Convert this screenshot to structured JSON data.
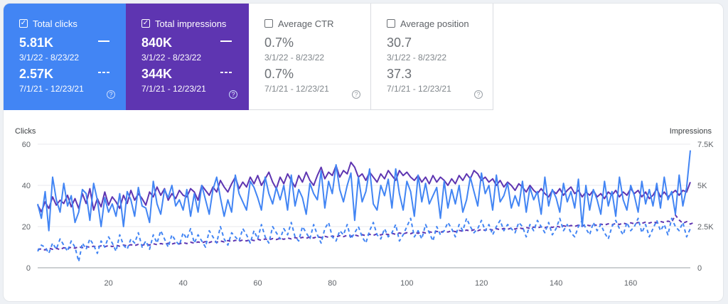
{
  "cards": [
    {
      "label": "Total clicks",
      "checked": true,
      "value1": "5.81K",
      "range1": "3/1/22 - 8/23/22",
      "value2": "2.57K",
      "range2": "7/1/21 - 12/23/21",
      "help": "?"
    },
    {
      "label": "Total impressions",
      "checked": true,
      "value1": "840K",
      "range1": "3/1/22 - 8/23/22",
      "value2": "344K",
      "range2": "7/1/21 - 12/23/21",
      "help": "?"
    },
    {
      "label": "Average CTR",
      "checked": false,
      "value1": "0.7%",
      "range1": "3/1/22 - 8/23/22",
      "value2": "0.7%",
      "range2": "7/1/21 - 12/23/21",
      "help": "?"
    },
    {
      "label": "Average position",
      "checked": false,
      "value1": "30.7",
      "range1": "3/1/22 - 8/23/22",
      "value2": "37.3",
      "range2": "7/1/21 - 12/23/21",
      "help": "?"
    }
  ],
  "colors": {
    "clicks": "#4285f4",
    "impressions": "#5e35b1",
    "grid": "#e8eaed"
  },
  "chart_data": {
    "type": "line",
    "xlabel": "",
    "ylabel": "Clicks",
    "ylabel_right": "Impressions",
    "ylim": [
      0,
      60
    ],
    "ylim_right": [
      0,
      7500
    ],
    "xlim": [
      1,
      176
    ],
    "y_ticks": [
      "0",
      "20",
      "40",
      "60"
    ],
    "y_right_ticks": [
      "0",
      "2.5K",
      "5K",
      "7.5K"
    ],
    "x_ticks": [
      20,
      40,
      60,
      80,
      100,
      120,
      140,
      160
    ],
    "grid": true,
    "series": [
      {
        "axis": "left",
        "style": "solid",
        "color": "#4285f4",
        "values": [
          31,
          24,
          37,
          18,
          44,
          33,
          27,
          41,
          30,
          35,
          22,
          27,
          38,
          36,
          23,
          41,
          33,
          20,
          34,
          27,
          31,
          25,
          36,
          20,
          37,
          33,
          25,
          39,
          30,
          29,
          22,
          42,
          31,
          26,
          38,
          34,
          40,
          30,
          33,
          28,
          38,
          25,
          36,
          27,
          40,
          33,
          26,
          38,
          44,
          34,
          25,
          33,
          27,
          45,
          36,
          32,
          28,
          42,
          39,
          34,
          28,
          44,
          36,
          31,
          39,
          33,
          40,
          28,
          45,
          30,
          38,
          34,
          26,
          41,
          36,
          33,
          47,
          29,
          42,
          36,
          50,
          38,
          32,
          40,
          46,
          23,
          44,
          32,
          37,
          48,
          31,
          28,
          40,
          35,
          43,
          29,
          48,
          36,
          28,
          42,
          37,
          25,
          45,
          32,
          41,
          31,
          35,
          39,
          24,
          42,
          29,
          38,
          31,
          40,
          27,
          33,
          44,
          37,
          30,
          46,
          36,
          40,
          28,
          45,
          32,
          35,
          41,
          29,
          35,
          30,
          42,
          27,
          39,
          33,
          37,
          26,
          44,
          30,
          38,
          34,
          27,
          41,
          32,
          37,
          29,
          43,
          20,
          40,
          28,
          38,
          33,
          26,
          42,
          30,
          37,
          25,
          44,
          33,
          28,
          40,
          35,
          27,
          42,
          31,
          38,
          30,
          41,
          29,
          44,
          33,
          37,
          26,
          45,
          30,
          39,
          57
        ]
      },
      {
        "axis": "right",
        "style": "solid",
        "color": "#5e35b1",
        "values": [
          3800,
          3400,
          4000,
          3600,
          4300,
          3800,
          4100,
          3900,
          4400,
          3700,
          4200,
          3600,
          4500,
          3900,
          4800,
          3500,
          4200,
          3700,
          4600,
          3800,
          4300,
          4000,
          3600,
          4400,
          3900,
          4700,
          4100,
          4500,
          4200,
          3800,
          4600,
          4300,
          4900,
          4400,
          4800,
          4100,
          4500,
          4200,
          4700,
          4400,
          4300,
          4800,
          4600,
          4100,
          5000,
          4700,
          4400,
          4900,
          4600,
          5300,
          4900,
          4600,
          5100,
          5500,
          4800,
          5200,
          4900,
          5500,
          5100,
          5600,
          5000,
          5400,
          5800,
          5200,
          4800,
          5500,
          5100,
          5700,
          5300,
          4900,
          5600,
          5200,
          5800,
          5300,
          5000,
          5600,
          6100,
          5400,
          5800,
          5600,
          6200,
          5500,
          5900,
          5700,
          6400,
          6100,
          5500,
          5700,
          5300,
          5800,
          5500,
          5200,
          5700,
          5400,
          5900,
          5600,
          5300,
          5900,
          5600,
          5800,
          5500,
          5300,
          5600,
          5200,
          5500,
          5100,
          5600,
          5200,
          5500,
          5300,
          5000,
          5400,
          5100,
          5600,
          5300,
          5700,
          5400,
          5900,
          5700,
          5300,
          5500,
          5200,
          5400,
          5000,
          5300,
          4900,
          5200,
          5000,
          4700,
          5100,
          4900,
          4600,
          5000,
          4700,
          4500,
          4800,
          4500,
          4300,
          4700,
          4500,
          4800,
          4400,
          4700,
          4900,
          4500,
          4700,
          4300,
          4600,
          4400,
          4700,
          4300,
          4500,
          4200,
          4600,
          4400,
          4700,
          4300,
          4600,
          4400,
          4800,
          4500,
          4700,
          4300,
          4600,
          4200,
          4400,
          4800,
          4300,
          4600,
          4300,
          4500,
          4700,
          4400,
          4700,
          4600,
          5200
        ]
      },
      {
        "axis": "left",
        "style": "dashed",
        "color": "#4285f4",
        "values": [
          8,
          11,
          10,
          7,
          12,
          9,
          14,
          11,
          8,
          13,
          10,
          3,
          12,
          9,
          14,
          11,
          7,
          13,
          10,
          15,
          12,
          8,
          16,
          11,
          9,
          14,
          12,
          17,
          10,
          13,
          9,
          16,
          12,
          18,
          14,
          10,
          16,
          13,
          11,
          17,
          14,
          19,
          12,
          16,
          13,
          10,
          18,
          15,
          12,
          20,
          14,
          11,
          17,
          15,
          13,
          19,
          16,
          12,
          18,
          14,
          21,
          15,
          12,
          20,
          17,
          14,
          19,
          16,
          22,
          15,
          13,
          20,
          17,
          14,
          21,
          16,
          12,
          19,
          22,
          15,
          13,
          18,
          16,
          21,
          14,
          17,
          20,
          15,
          12,
          18,
          22,
          16,
          14,
          19,
          15,
          17,
          21,
          13,
          16,
          20,
          24,
          15,
          18,
          14,
          21,
          17,
          13,
          20,
          16,
          18,
          22,
          19,
          15,
          21,
          18,
          24,
          20,
          17,
          19,
          23,
          18,
          21,
          16,
          20,
          23,
          18,
          21,
          19,
          17,
          22,
          20,
          15,
          21,
          18,
          23,
          20,
          17,
          22,
          16,
          19,
          24,
          18,
          21,
          17,
          15,
          20,
          23,
          19,
          16,
          22,
          18,
          21,
          17,
          14,
          20,
          23,
          19,
          16,
          22,
          18,
          20,
          24,
          17,
          21,
          15,
          19,
          23,
          18,
          21,
          16,
          24,
          20,
          18,
          22,
          15,
          19
        ]
      },
      {
        "axis": "right",
        "style": "dashed",
        "color": "#5e35b1",
        "values": [
          1100,
          1150,
          1080,
          1200,
          1120,
          1180,
          1100,
          1220,
          1160,
          1250,
          1190,
          1280,
          1220,
          1300,
          1240,
          1310,
          1260,
          1330,
          1280,
          1350,
          1290,
          1370,
          1310,
          1380,
          1330,
          1400,
          1350,
          1420,
          1360,
          1440,
          1380,
          1460,
          1400,
          1470,
          1420,
          1490,
          1440,
          1510,
          1450,
          1530,
          1470,
          1550,
          1490,
          1570,
          1510,
          1590,
          1530,
          1610,
          1550,
          1630,
          1570,
          1650,
          1590,
          1670,
          1610,
          1690,
          1630,
          1710,
          1650,
          1730,
          1670,
          1750,
          1690,
          1770,
          1710,
          1790,
          1730,
          1810,
          1750,
          1830,
          1770,
          1850,
          1790,
          1870,
          1810,
          1890,
          1830,
          1910,
          1850,
          1930,
          1870,
          1950,
          1890,
          1970,
          1910,
          1990,
          1930,
          2010,
          1950,
          2030,
          1970,
          2050,
          1990,
          2070,
          2010,
          2090,
          2030,
          2110,
          2050,
          2130,
          2070,
          2150,
          2090,
          2170,
          2110,
          2190,
          2130,
          2210,
          2150,
          2230,
          2170,
          2250,
          2190,
          2270,
          2210,
          2290,
          2230,
          2310,
          2250,
          2330,
          2270,
          2350,
          2290,
          2370,
          2310,
          2390,
          2330,
          2410,
          2350,
          2430,
          2370,
          2450,
          2390,
          2470,
          2410,
          2490,
          2430,
          2510,
          2450,
          2530,
          2470,
          2550,
          2490,
          2570,
          2510,
          2590,
          2530,
          2610,
          2550,
          2630,
          2570,
          2650,
          2590,
          2670,
          2610,
          2690,
          2630,
          2710,
          2650,
          2730,
          2670,
          2750,
          2690,
          2770,
          2710,
          2790,
          2730,
          2810,
          2750,
          2830,
          2770,
          3200,
          2900,
          2700,
          2800,
          2650,
          2750
        ]
      }
    ]
  }
}
